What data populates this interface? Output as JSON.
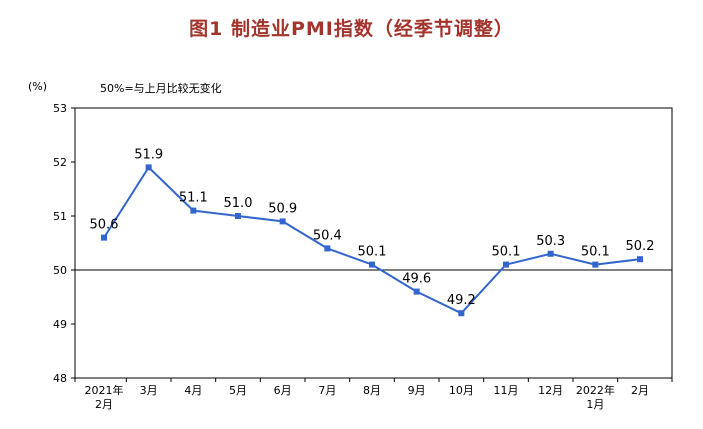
{
  "header": {
    "title": "图1 制造业PMI指数（经季节调整）"
  },
  "axis_notes": {
    "y_unit": "(%)",
    "baseline_note": "50%=与上月比较无变化"
  },
  "colors": {
    "title": "#A3342B",
    "line": "#3366CC",
    "axis": "#000000",
    "label_text": "#000000"
  },
  "chart_data": {
    "type": "line",
    "title": "图1 制造业PMI指数（经季节调整）",
    "categories": [
      [
        "2021年",
        "2月"
      ],
      [
        "3月"
      ],
      [
        "4月"
      ],
      [
        "5月"
      ],
      [
        "6月"
      ],
      [
        "7月"
      ],
      [
        "8月"
      ],
      [
        "9月"
      ],
      [
        "10月"
      ],
      [
        "11月"
      ],
      [
        "12月"
      ],
      [
        "2022年",
        "1月"
      ],
      [
        "2月"
      ]
    ],
    "values": [
      50.6,
      51.9,
      51.1,
      51.0,
      50.9,
      50.4,
      50.1,
      49.6,
      49.2,
      50.1,
      50.3,
      50.1,
      50.2
    ],
    "ylabel": "(%)",
    "xlabel": "",
    "ylim": [
      48,
      53
    ],
    "yticks": [
      48,
      49,
      50,
      51,
      52,
      53
    ],
    "reference_line": 50,
    "grid": "off",
    "legend": "none",
    "marker": "square",
    "line_color": "#3366CC",
    "axis_color": "#000000"
  }
}
